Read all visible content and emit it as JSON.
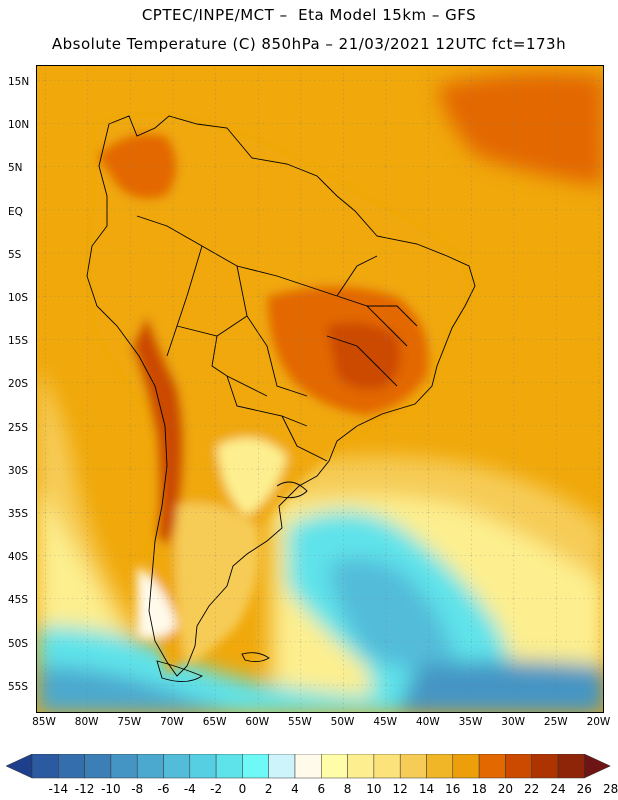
{
  "title_line1": "CPTEC/INPE/MCT –  Eta Model 15km – GFS",
  "title_line2": "Absolute Temperature (C) 850hPa – 21/03/2021 12UTC fct=173h",
  "lat_labels": [
    "15N",
    "10N",
    "5N",
    "EQ",
    "5S",
    "10S",
    "15S",
    "20S",
    "25S",
    "30S",
    "35S",
    "40S",
    "45S",
    "50S",
    "55S"
  ],
  "lon_labels": [
    "85W",
    "80W",
    "75W",
    "70W",
    "65W",
    "60W",
    "55W",
    "50W",
    "45W",
    "40W",
    "35W",
    "30W",
    "25W",
    "20W"
  ],
  "colorbar": {
    "labels": [
      "-14",
      "-12",
      "-10",
      "-8",
      "-6",
      "-4",
      "-2",
      "0",
      "2",
      "4",
      "6",
      "8",
      "10",
      "12",
      "14",
      "16",
      "18",
      "20",
      "22",
      "24",
      "26",
      "28"
    ],
    "colors": [
      "#1d3f8c",
      "#2c5aa0",
      "#356ead",
      "#3b7fb6",
      "#4595c4",
      "#4ba9cf",
      "#52bcd9",
      "#57cfe3",
      "#5ee3ea",
      "#6ef8f6",
      "#cdf4fb",
      "#fffaea",
      "#fffda8",
      "#fdef8f",
      "#fbe27b",
      "#f6cc56",
      "#f1b628",
      "#ec9f0a",
      "#e36800",
      "#cc4a00",
      "#ad3400",
      "#8e2508",
      "#6f1414"
    ]
  },
  "colors": {
    "ocean_warm": "#f0a80a",
    "ocean_mid": "#f6cc56",
    "ocean_cool": "#fdef8f",
    "cold_sea": "#5ee3ea",
    "land_hot": "#e36800",
    "land_hotter": "#cc4a00",
    "map_border": "#000000"
  }
}
